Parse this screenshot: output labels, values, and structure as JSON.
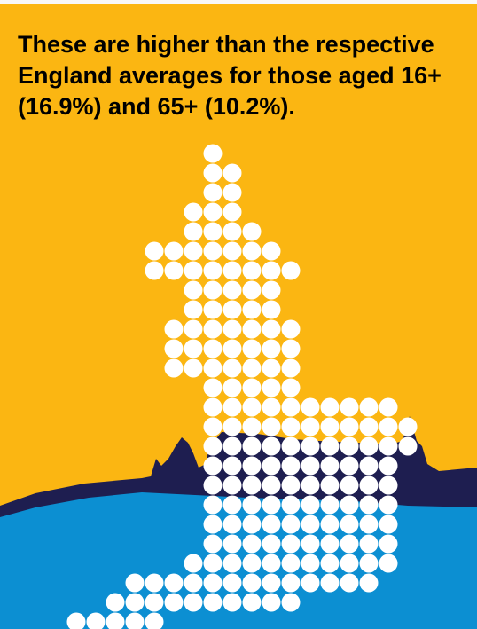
{
  "headline": "These are higher than the respective England averages for those aged 16+ (16.9%) and 65+ (10.2%).",
  "colors": {
    "background": "#fbb612",
    "skyline": "#1e1e50",
    "water": "#0c8fd2",
    "dots": "#ffffff",
    "text": "#000000"
  },
  "illustration": {
    "map_icon": "england-dot-map-icon",
    "skyline_icon": "city-skyline-silhouette-icon"
  }
}
